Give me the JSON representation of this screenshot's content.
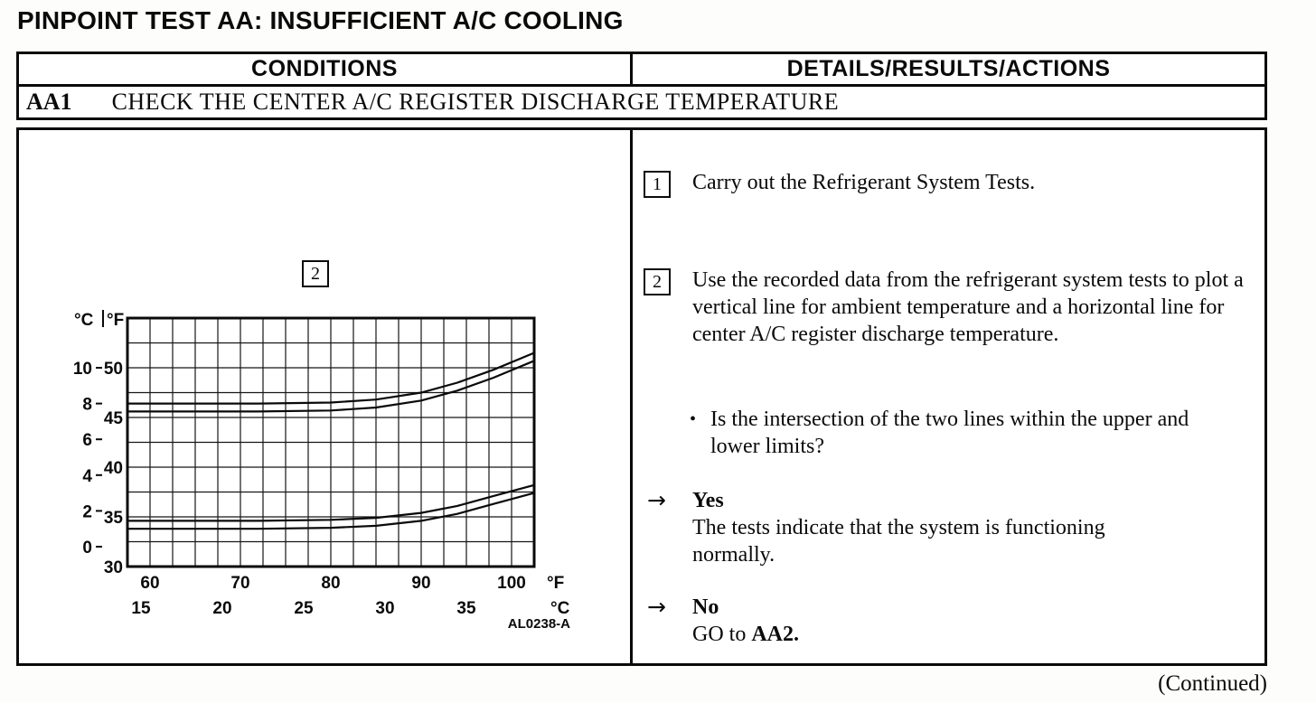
{
  "page": {
    "title": "PINPOINT TEST AA: INSUFFICIENT A/C COOLING",
    "continued": "(Continued)"
  },
  "table": {
    "conditions_header": "CONDITIONS",
    "details_header": "DETAILS/RESULTS/ACTIONS",
    "step_id": "AA1",
    "step_title": "CHECK THE CENTER A/C REGISTER DISCHARGE TEMPERATURE"
  },
  "details": {
    "step1": {
      "num": "1",
      "text": "Carry out the Refrigerant System Tests."
    },
    "step2": {
      "num": "2",
      "text": "Use the recorded data from the refrigerant system tests to plot a vertical line for ambient temperature and a horizontal line for center A/C register discharge temperature."
    },
    "question": {
      "bullet": "•",
      "text": "Is the intersection of the two lines within the upper and lower limits?"
    },
    "yes": {
      "arrow": "→",
      "label": "Yes",
      "text": "The tests indicate that the system is functioning normally."
    },
    "no": {
      "arrow": "→",
      "label": "No",
      "action_prefix": "GO to ",
      "action_target": "AA2."
    }
  },
  "chart_data": {
    "type": "line",
    "description": "Center A/C register discharge temperature upper and lower limits vs ambient temperature",
    "callout_label": "2",
    "figure_code": "AL0238-A",
    "grid": true,
    "line_style": "double",
    "band_offset_f": 0.8,
    "x_axis": {
      "f_unit": "°F",
      "c_unit": "°C",
      "f_ticks": [
        60,
        70,
        80,
        90,
        100
      ],
      "c_ticks": [
        15,
        20,
        25,
        30,
        35
      ],
      "range_f": [
        57.5,
        102.5
      ],
      "grid_step_f": 2.5
    },
    "y_axis": {
      "f_unit": "°F",
      "c_unit": "°C",
      "f_ticks": [
        50,
        45,
        40,
        35,
        30
      ],
      "c_ticks": [
        10,
        8,
        6,
        4,
        2,
        0
      ],
      "range_f": [
        30,
        55
      ],
      "grid_step_f": 2.5
    },
    "series": [
      {
        "name": "upper_limit",
        "points_f": [
          [
            57.5,
            46.4
          ],
          [
            72,
            46.4
          ],
          [
            80,
            46.5
          ],
          [
            85,
            46.8
          ],
          [
            90,
            47.5
          ],
          [
            94,
            48.5
          ],
          [
            98,
            49.8
          ],
          [
            102.5,
            51.5
          ]
        ]
      },
      {
        "name": "lower_limit",
        "points_f": [
          [
            57.5,
            34.6
          ],
          [
            72,
            34.6
          ],
          [
            80,
            34.7
          ],
          [
            85,
            34.9
          ],
          [
            90,
            35.4
          ],
          [
            94,
            36.1
          ],
          [
            98,
            37.1
          ],
          [
            102.5,
            38.2
          ]
        ]
      }
    ]
  }
}
